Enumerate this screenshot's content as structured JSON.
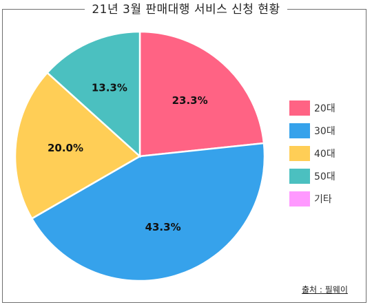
{
  "chart_data": {
    "type": "pie",
    "title": "21년 3월 판매대행 서비스 신청 현황",
    "categories": [
      "20대",
      "30대",
      "40대",
      "50대",
      "기타"
    ],
    "values": [
      23.3,
      43.3,
      20.0,
      13.3,
      0
    ],
    "value_labels": [
      "23.3%",
      "43.3%",
      "20.0%",
      "13.3%",
      ""
    ],
    "colors": [
      "#FF6384",
      "#36A2EB",
      "#FFCE56",
      "#4BC0C0",
      "#FF99FF"
    ],
    "start_angle_deg": 0,
    "direction": "clockwise",
    "legend_position": "right",
    "source": "출처 : 필웨이"
  }
}
